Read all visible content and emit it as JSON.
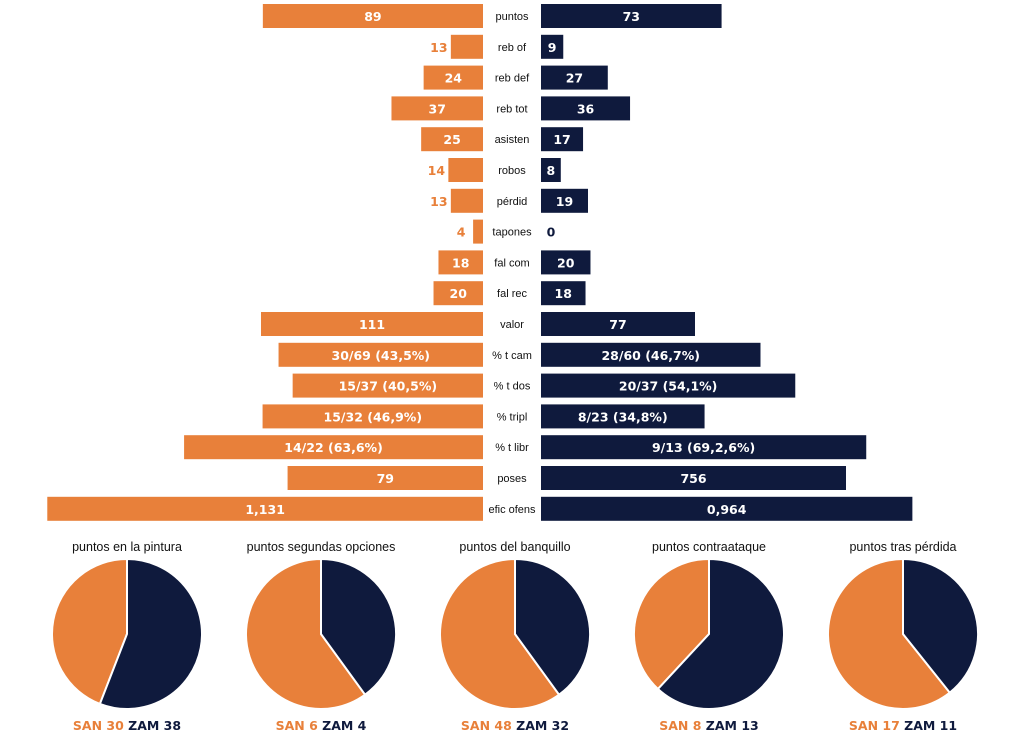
{
  "colors": {
    "san": "#E8803A",
    "zam": "#0F1A3D",
    "label": "#111111",
    "bar_text": "#ffffff"
  },
  "chart_data": [
    {
      "type": "bar",
      "orientation": "horizontal-diverging",
      "categories": [
        "puntos",
        "reb of",
        "reb def",
        "reb tot",
        "asisten",
        "robos",
        "pérdid",
        "tapones",
        "fal com",
        "fal rec",
        "valor",
        "% t cam",
        "% t dos",
        "% tripl",
        "% t libr",
        "poses",
        "efic ofens"
      ],
      "series": [
        {
          "name": "SAN",
          "values": [
            89,
            13,
            24,
            37,
            25,
            14,
            13,
            4,
            18,
            20,
            111,
            43.5,
            40.5,
            46.9,
            63.6,
            79,
            1.131
          ],
          "labels": [
            "89",
            "13",
            "24",
            "37",
            "25",
            "14",
            "13",
            "4",
            "18",
            "20",
            "111",
            "30/69 (43,5%)",
            "15/37 (40,5%)",
            "15/32 (46,9%)",
            "14/22 (63,6%)",
            "79",
            "1,131"
          ]
        },
        {
          "name": "ZAM",
          "values": [
            73,
            9,
            27,
            36,
            17,
            8,
            19,
            0,
            20,
            18,
            77,
            46.7,
            54.1,
            34.8,
            69.2,
            756,
            0.964
          ],
          "labels": [
            "73",
            "9",
            "27",
            "36",
            "17",
            "8",
            "19",
            "0",
            "20",
            "18",
            "77",
            "28/60 (46,7%)",
            "20/37 (54,1%)",
            "8/23 (34,8%)",
            "9/13 (69,2,6%)",
            "756",
            "0,964"
          ]
        }
      ]
    },
    {
      "type": "pie",
      "title": "puntos en la pintura",
      "slices": [
        {
          "name": "SAN",
          "value": 30
        },
        {
          "name": "ZAM",
          "value": 38
        }
      ]
    },
    {
      "type": "pie",
      "title": "puntos segundas opciones",
      "slices": [
        {
          "name": "SAN",
          "value": 6
        },
        {
          "name": "ZAM",
          "value": 4
        }
      ]
    },
    {
      "type": "pie",
      "title": "puntos del banquillo",
      "slices": [
        {
          "name": "SAN",
          "value": 48
        },
        {
          "name": "ZAM",
          "value": 32
        }
      ]
    },
    {
      "type": "pie",
      "title": "puntos contraataque",
      "slices": [
        {
          "name": "SAN",
          "value": 8
        },
        {
          "name": "ZAM",
          "value": 13
        }
      ]
    },
    {
      "type": "pie",
      "title": "puntos tras pérdida",
      "slices": [
        {
          "name": "SAN",
          "value": 17
        },
        {
          "name": "ZAM",
          "value": 11
        }
      ]
    }
  ]
}
